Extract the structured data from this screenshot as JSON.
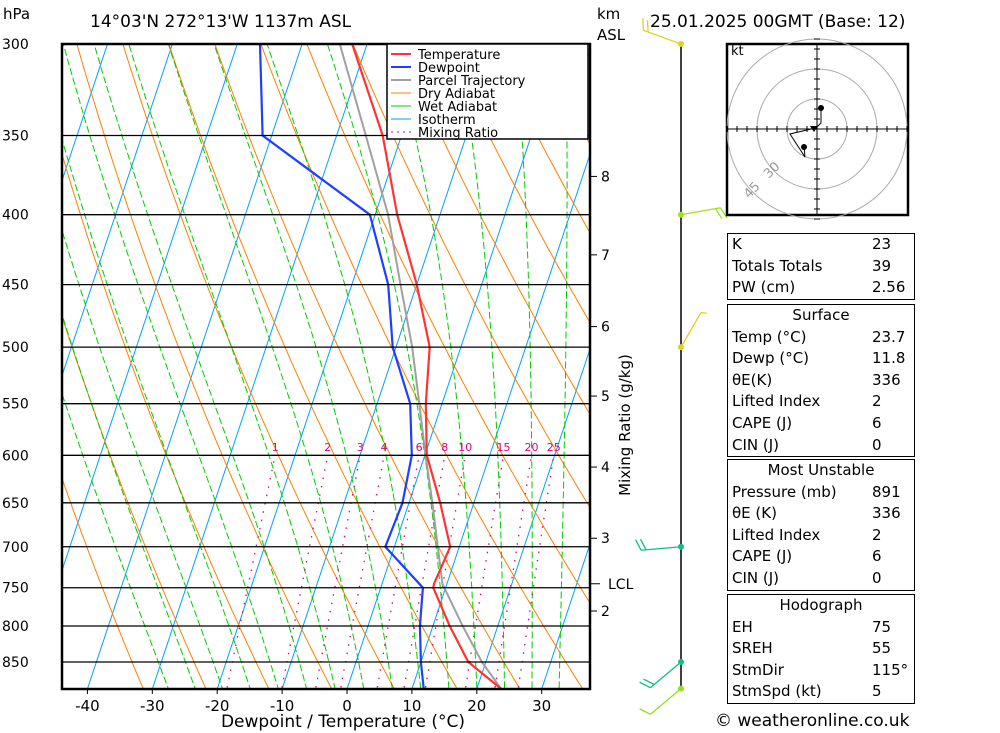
{
  "header": {
    "pressure_unit": "hPa",
    "location": "14°03'N 272°13'W 1137m ASL",
    "km_label": "km",
    "asl_label": "ASL",
    "datetime": "25.01.2025 00GMT (Base: 12)"
  },
  "footer": {
    "copyright": "© weatheronline.co.uk"
  },
  "hodograph": {
    "unit": "kt",
    "ring_labels": [
      "30",
      "45"
    ]
  },
  "indices": [
    {
      "label": "K",
      "value": "23"
    },
    {
      "label": "Totals Totals",
      "value": "39"
    },
    {
      "label": "PW (cm)",
      "value": "2.56"
    }
  ],
  "surface": {
    "title": "Surface",
    "rows": [
      {
        "label": "Temp (°C)",
        "value": "23.7"
      },
      {
        "label": "Dewp (°C)",
        "value": "11.8"
      },
      {
        "label": "θE(K)",
        "value": "336"
      },
      {
        "label": "Lifted Index",
        "value": "2"
      },
      {
        "label": "CAPE (J)",
        "value": "6"
      },
      {
        "label": "CIN (J)",
        "value": "0"
      }
    ]
  },
  "most_unstable": {
    "title": "Most Unstable",
    "rows": [
      {
        "label": "Pressure (mb)",
        "value": "891"
      },
      {
        "label": "θE (K)",
        "value": "336"
      },
      {
        "label": "Lifted Index",
        "value": "2"
      },
      {
        "label": "CAPE (J)",
        "value": "6"
      },
      {
        "label": "CIN (J)",
        "value": "0"
      }
    ]
  },
  "hodograph_table": {
    "title": "Hodograph",
    "rows": [
      {
        "label": "EH",
        "value": "75"
      },
      {
        "label": "SREH",
        "value": "55"
      },
      {
        "label": "StmDir",
        "value": "115°"
      },
      {
        "label": "StmSpd (kt)",
        "value": "5"
      }
    ]
  },
  "chart_data": {
    "type": "line",
    "subtype": "skew-t log-p",
    "xlabel": "Dewpoint / Temperature (°C)",
    "ylabel": "hPa",
    "right_label": "Mixing Ratio (g/kg)",
    "x_ticks": [
      "-40",
      "-30",
      "-20",
      "-10",
      "0",
      "10",
      "20",
      "30"
    ],
    "x_tick_values": [
      -40,
      -30,
      -20,
      -10,
      0,
      10,
      20,
      30
    ],
    "pressure_ticks": [
      "300",
      "350",
      "400",
      "450",
      "500",
      "550",
      "600",
      "650",
      "700",
      "750",
      "800",
      "850"
    ],
    "pressure_tick_values": [
      300,
      350,
      400,
      450,
      500,
      550,
      600,
      650,
      700,
      750,
      800,
      850
    ],
    "p_range": [
      300,
      889
    ],
    "t_range_bottom": [
      -43,
      38
    ],
    "height_ticks": [
      "8",
      "7",
      "6",
      "5",
      "4",
      "3",
      "2"
    ],
    "height_tick_pressures": [
      375,
      428,
      483,
      543,
      612,
      690,
      780
    ],
    "lcl_label": "LCL",
    "lcl_pressure": 745,
    "legend": [
      "Temperature",
      "Dewpoint",
      "Parcel Trajectory",
      "Dry Adiabat",
      "Wet Adiabat",
      "Isotherm",
      "Mixing Ratio"
    ],
    "colors": {
      "temperature": "#ff3333",
      "dewpoint": "#1f3fff",
      "parcel": "#a0a0a0",
      "dry": "#ff7f00",
      "wet": "#00cc00",
      "isotherm": "#00a0ff",
      "mixing": "#e0007f"
    },
    "mixing_ratio_labels": [
      "1",
      "2",
      "3",
      "4",
      "6",
      "8",
      "10",
      "15",
      "20",
      "25"
    ],
    "mixing_ratio_values": [
      1,
      2,
      3,
      4,
      6,
      8,
      10,
      15,
      20,
      25
    ],
    "series": [
      {
        "name": "Temperature",
        "p": [
          889,
          850,
          800,
          750,
          745,
          700,
          650,
          600,
          550,
          500,
          450,
          400,
          350,
          300
        ],
        "t": [
          23.7,
          17.3,
          12.6,
          8.1,
          8.0,
          8.6,
          4.8,
          0.3,
          -2.5,
          -4.8,
          -10.0,
          -16.6,
          -22.9,
          -32.3
        ]
      },
      {
        "name": "Dewpoint",
        "p": [
          889,
          850,
          800,
          750,
          700,
          650,
          600,
          550,
          500,
          450,
          400,
          350,
          300
        ],
        "t": [
          11.8,
          10.0,
          8.0,
          6.5,
          -1.4,
          -1.0,
          -2.0,
          -4.9,
          -10.5,
          -14.4,
          -20.8,
          -41.4,
          -46.5
        ]
      },
      {
        "name": "Parcel Trajectory",
        "p": [
          889,
          850,
          800,
          745,
          700,
          650,
          600,
          550,
          500,
          450,
          400,
          350,
          300
        ],
        "t": [
          23.7,
          19.4,
          14.6,
          9.3,
          6.7,
          3.6,
          0.1,
          -3.5,
          -7.5,
          -12.5,
          -18.0,
          -25.5,
          -34.2
        ]
      }
    ],
    "isotherms": [
      -120,
      -110,
      -100,
      -90,
      -80,
      -70,
      -60,
      -50,
      -40,
      -30,
      -20,
      -10,
      0,
      10,
      20,
      30,
      40
    ],
    "dry_adiabats_theta_K": [
      250,
      260,
      270,
      280,
      290,
      300,
      310,
      320,
      330,
      340,
      350,
      360,
      370,
      380,
      390,
      400,
      410,
      420,
      430,
      440,
      450
    ],
    "wet_adiabats_T1000": [
      -20,
      -16,
      -12,
      -8,
      -4,
      0,
      4,
      8,
      12,
      16,
      20,
      24,
      28,
      32,
      36
    ],
    "winds": [
      {
        "p": 300,
        "dir": 290,
        "kt": 15
      },
      {
        "p": 400,
        "dir": 80,
        "kt": 15
      },
      {
        "p": 500,
        "dir": 30,
        "kt": 5
      },
      {
        "p": 700,
        "dir": 265,
        "kt": 20
      },
      {
        "p": 850,
        "dir": 230,
        "kt": 20
      },
      {
        "p": 889,
        "dir": 230,
        "kt": 10
      }
    ]
  }
}
